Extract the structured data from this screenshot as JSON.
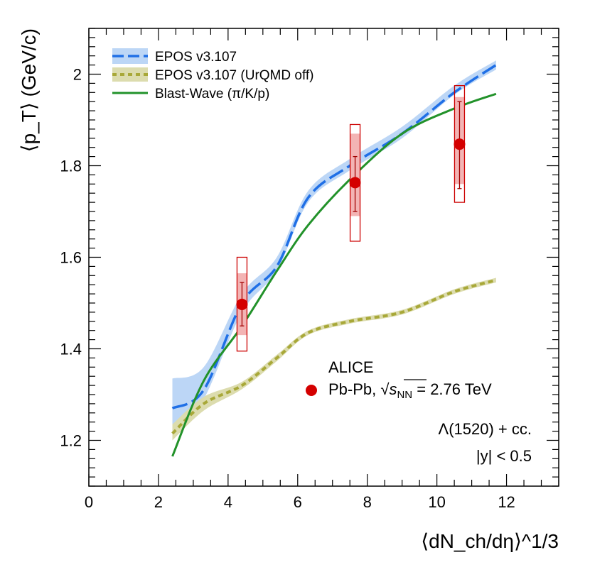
{
  "chart_data": {
    "type": "scatter",
    "xlabel": "⟨dN_ch/dη⟩^1/3",
    "ylabel": "⟨p_T⟩ (GeV/c)",
    "xlim": [
      0,
      13.5
    ],
    "ylim": [
      1.1,
      2.1
    ],
    "x_ticks": [
      "0",
      "2",
      "4",
      "6",
      "8",
      "10",
      "12"
    ],
    "y_ticks": [
      "1.2",
      "1.4",
      "1.6",
      "1.8",
      "2"
    ],
    "grid": false,
    "legend_position": "top-left",
    "legend": [
      {
        "label": "EPOS v3.107",
        "style": "dashed-band",
        "color": "#1f6fe6",
        "band_color": "#bcd6f6"
      },
      {
        "label": "EPOS v3.107 (UrQMD off)",
        "style": "dotted-band",
        "color": "#a8a838",
        "band_color": "#dcdcae"
      },
      {
        "label": "Blast-Wave (π/K/p)",
        "style": "solid",
        "color": "#22922a"
      }
    ],
    "annotations": {
      "experiment": "ALICE",
      "system_prefix": "Pb-Pb, ",
      "sqrt_symbol": "√",
      "s_letter": "s",
      "nn_sub": "NN",
      "energy_suffix": " = 2.76 TeV",
      "particle": "Λ(1520) + cc.",
      "rapidity": "|y| < 0.5"
    },
    "series": [
      {
        "name": "EPOS v3.107",
        "type": "line",
        "color": "#1f6fe6",
        "band_color": "#bcd6f6",
        "x": [
          2.4,
          3.3,
          4.4,
          5.4,
          6.3,
          7.5,
          9.0,
          10.5,
          11.7
        ],
        "y": [
          1.27,
          1.31,
          1.5,
          1.58,
          1.73,
          1.8,
          1.87,
          1.96,
          2.02
        ],
        "y_low": [
          1.21,
          1.29,
          1.48,
          1.57,
          1.72,
          1.79,
          1.86,
          1.955,
          2.01
        ],
        "y_high": [
          1.335,
          1.36,
          1.52,
          1.6,
          1.745,
          1.815,
          1.885,
          1.975,
          2.03
        ]
      },
      {
        "name": "EPOS v3.107 (UrQMD off)",
        "type": "line",
        "color": "#a8a838",
        "band_color": "#dcdcae",
        "x": [
          2.4,
          3.3,
          4.4,
          5.4,
          6.3,
          7.5,
          9.0,
          10.5,
          11.7
        ],
        "y": [
          1.215,
          1.28,
          1.32,
          1.38,
          1.435,
          1.46,
          1.48,
          1.525,
          1.55
        ],
        "y_low": [
          1.2,
          1.265,
          1.312,
          1.373,
          1.43,
          1.455,
          1.475,
          1.52,
          1.545
        ],
        "y_high": [
          1.235,
          1.295,
          1.328,
          1.387,
          1.44,
          1.465,
          1.485,
          1.53,
          1.555
        ]
      },
      {
        "name": "Blast-Wave (π/K/p)",
        "type": "line",
        "color": "#22922a",
        "x": [
          2.4,
          3.3,
          4.4,
          5.4,
          6.3,
          7.5,
          9.0,
          10.5,
          11.7
        ],
        "y": [
          1.165,
          1.33,
          1.45,
          1.57,
          1.67,
          1.77,
          1.87,
          1.925,
          1.957
        ]
      },
      {
        "name": "ALICE Pb-Pb, √sNN = 2.76 TeV",
        "type": "scatter",
        "color": "#d40000",
        "x": [
          4.4,
          7.65,
          10.65
        ],
        "y": [
          1.497,
          1.763,
          1.847
        ],
        "stat_low": [
          1.45,
          1.7,
          1.75
        ],
        "stat_high": [
          1.545,
          1.82,
          1.94
        ],
        "sys_low": [
          1.395,
          1.635,
          1.72
        ],
        "sys_high": [
          1.6,
          1.89,
          1.975
        ],
        "sys_unc_low": [
          1.43,
          1.69,
          1.76
        ],
        "sys_unc_high": [
          1.565,
          1.87,
          1.95
        ]
      }
    ]
  }
}
